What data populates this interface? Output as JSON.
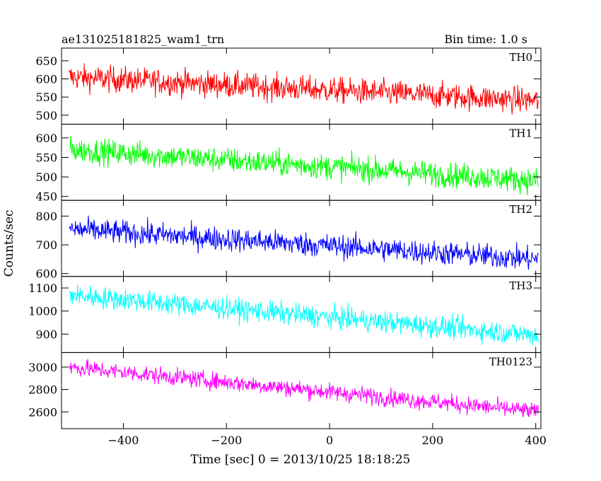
{
  "chart_data": {
    "type": "line",
    "title": "ae131025181825_wam1_trn",
    "subtitle": "Bin time: 1.0 s",
    "xlabel": "Time [sec] 0 = 2013/10/25 18:18:25",
    "ylabel": "Counts/sec",
    "xlim": [
      -520,
      410
    ],
    "x_ticks": [
      -400,
      -200,
      0,
      200,
      400
    ],
    "x_tick_labels": [
      "−400",
      "−200",
      "0",
      "200",
      "400"
    ],
    "x_range": [
      -505,
      405
    ],
    "bin_time": 1.0,
    "panels": [
      {
        "name": "TH0",
        "color": "#ff0000",
        "ylim": [
          475,
          685
        ],
        "y_ticks": [
          500,
          550,
          600,
          650
        ],
        "y_tick_labels": [
          "500",
          "550",
          "600",
          "650"
        ],
        "trend": [
          [
            -505,
            605
          ],
          [
            405,
            540
          ]
        ],
        "noise": 30
      },
      {
        "name": "TH1",
        "color": "#00ff00",
        "ylim": [
          440,
          635
        ],
        "y_ticks": [
          450,
          500,
          550,
          600
        ],
        "y_tick_labels": [
          "450",
          "500",
          "550",
          "600"
        ],
        "trend": [
          [
            -505,
            570
          ],
          [
            405,
            490
          ]
        ],
        "noise": 27
      },
      {
        "name": "TH2",
        "color": "#0000ff",
        "ylim": [
          590,
          855
        ],
        "y_ticks": [
          600,
          700,
          800
        ],
        "y_tick_labels": [
          "600",
          "700",
          "800"
        ],
        "trend": [
          [
            -505,
            755
          ],
          [
            405,
            650
          ]
        ],
        "noise": 35
      },
      {
        "name": "TH3",
        "color": "#00ffff",
        "ylim": [
          820,
          1150
        ],
        "y_ticks": [
          900,
          1000,
          1100
        ],
        "y_tick_labels": [
          "900",
          "1000",
          "1100"
        ],
        "trend": [
          [
            -505,
            1070
          ],
          [
            405,
            895
          ]
        ],
        "noise": 40
      },
      {
        "name": "TH0123",
        "color": "#ff00ff",
        "ylim": [
          2450,
          3130
        ],
        "y_ticks": [
          2600,
          2800,
          3000
        ],
        "y_tick_labels": [
          "2600",
          "2800",
          "3000"
        ],
        "trend": [
          [
            -505,
            3000
          ],
          [
            405,
            2600
          ]
        ],
        "noise": 65
      }
    ]
  }
}
